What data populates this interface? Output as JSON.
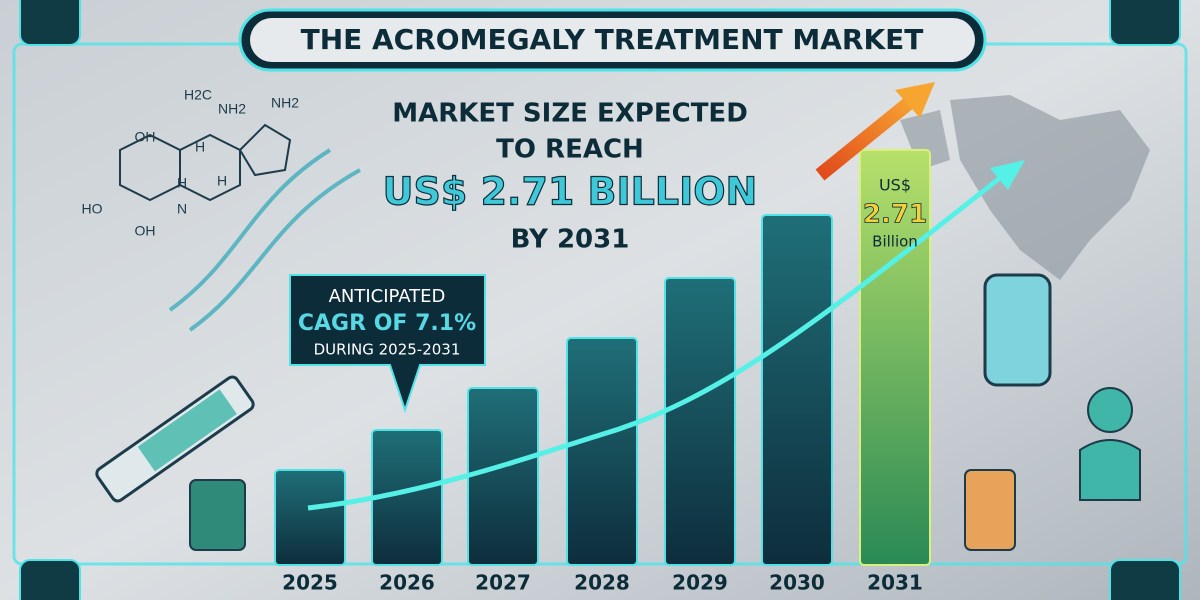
{
  "header": {
    "title": "THE ACROMEGALY TREATMENT MARKET"
  },
  "headline": [
    "MARKET SIZE EXPECTED",
    "TO REACH",
    "US$ 2.71 BILLION",
    "BY 2031"
  ],
  "callout": [
    "ANTICIPATED",
    "CAGR OF 7.1%",
    "DURING 2025-2031"
  ],
  "bar_label": [
    "US$",
    "2.71",
    "Billion"
  ],
  "years": [
    "2025",
    "2026",
    "2027",
    "2028",
    "2029",
    "2030",
    "2031"
  ],
  "molecule_labels": [
    "H2C",
    "NH2",
    "NH2",
    "OH",
    "H",
    "H",
    "H",
    "N",
    "HO",
    "OH"
  ]
}
